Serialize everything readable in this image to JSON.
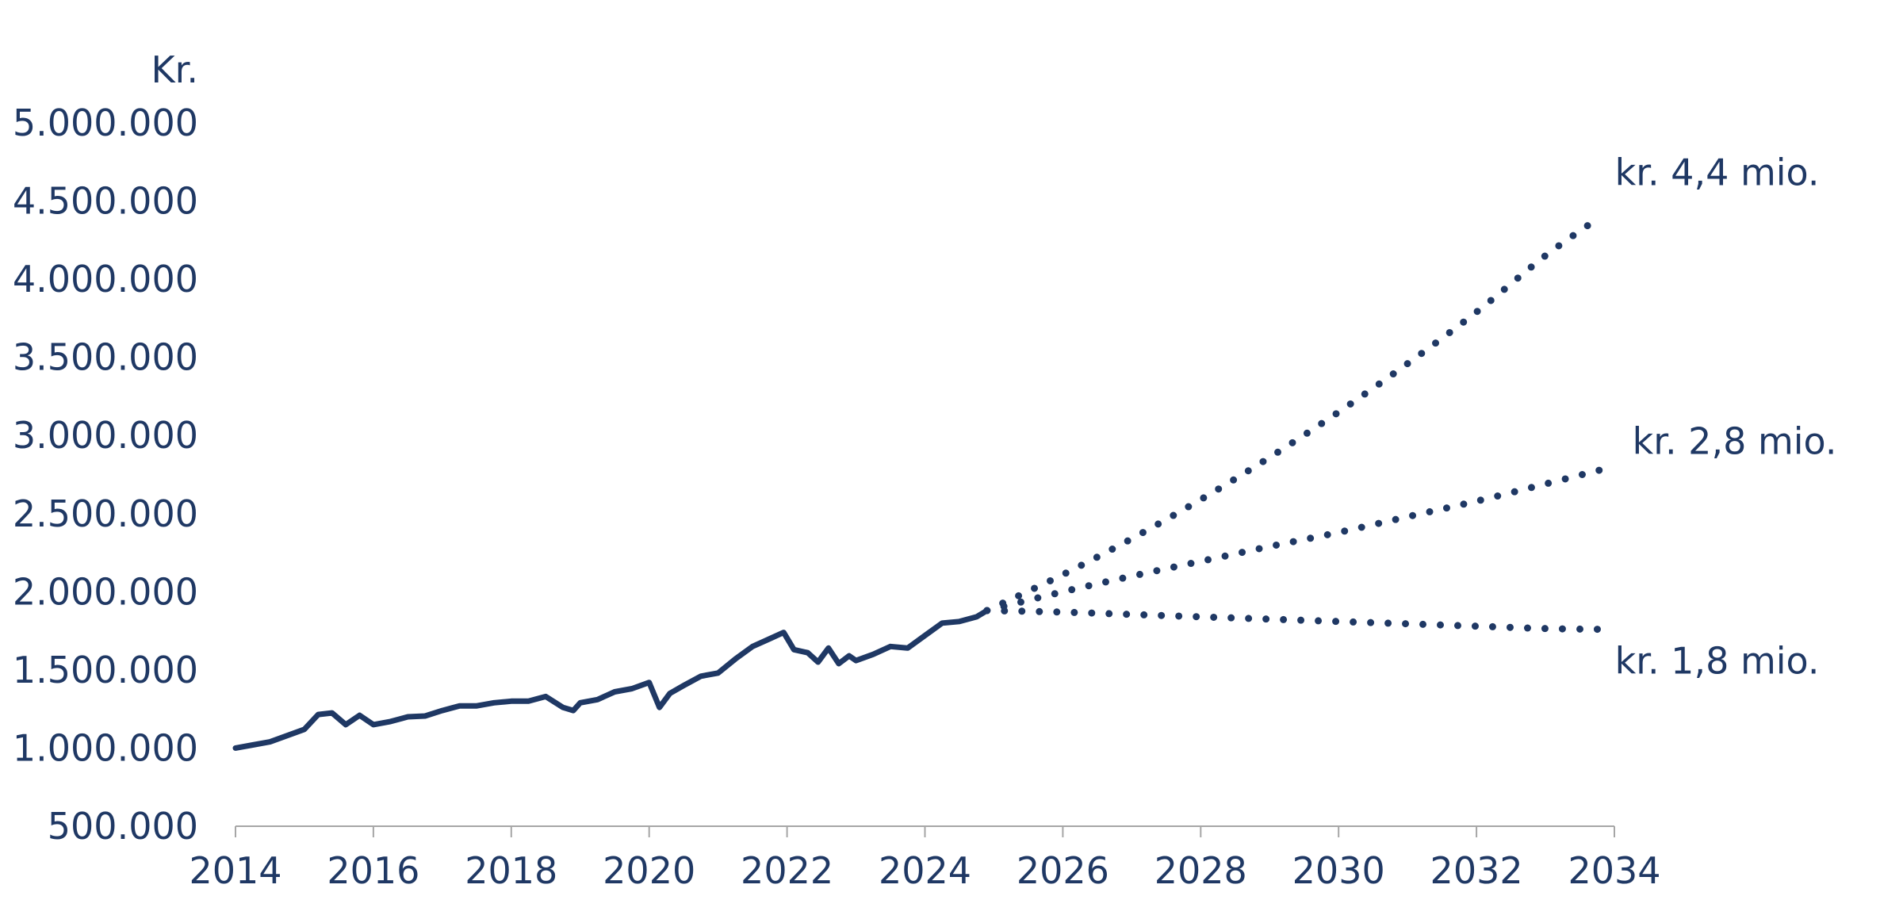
{
  "chart_data": {
    "type": "line",
    "title": "",
    "xlabel": "",
    "ylabel": "Kr.",
    "xlim": [
      2014,
      2034
    ],
    "ylim": [
      500000,
      5000000
    ],
    "x_ticks": [
      "2014",
      "2016",
      "2018",
      "2020",
      "2022",
      "2024",
      "2026",
      "2028",
      "2030",
      "2032",
      "2034"
    ],
    "y_ticks": [
      "500.000",
      "1.000.000",
      "1.500.000",
      "2.000.000",
      "2.500.000",
      "3.000.000",
      "3.500.000",
      "4.000.000",
      "4.500.000",
      "5.000.000"
    ],
    "grid": false,
    "legend": "none",
    "color": "#1f3864",
    "series": [
      {
        "style": "solid",
        "x": [
          2014.0,
          2014.25,
          2014.5,
          2014.75,
          2015.0,
          2015.2,
          2015.4,
          2015.6,
          2015.8,
          2016.0,
          2016.25,
          2016.5,
          2016.75,
          2017.0,
          2017.25,
          2017.5,
          2017.75,
          2018.0,
          2018.25,
          2018.5,
          2018.75,
          2018.9,
          2019.0,
          2019.25,
          2019.5,
          2019.75,
          2020.0,
          2020.15,
          2020.3,
          2020.5,
          2020.75,
          2021.0,
          2021.25,
          2021.5,
          2021.75,
          2021.95,
          2022.1,
          2022.3,
          2022.45,
          2022.6,
          2022.75,
          2022.9,
          2023.0,
          2023.25,
          2023.5,
          2023.75,
          2024.0,
          2024.25,
          2024.5,
          2024.75,
          2024.9
        ],
        "y": [
          1000000,
          1020000,
          1040000,
          1080000,
          1120000,
          1215000,
          1225000,
          1150000,
          1210000,
          1150000,
          1170000,
          1200000,
          1205000,
          1240000,
          1270000,
          1270000,
          1290000,
          1300000,
          1300000,
          1330000,
          1260000,
          1240000,
          1290000,
          1310000,
          1360000,
          1380000,
          1420000,
          1260000,
          1350000,
          1400000,
          1460000,
          1480000,
          1570000,
          1650000,
          1700000,
          1740000,
          1630000,
          1610000,
          1550000,
          1640000,
          1540000,
          1590000,
          1560000,
          1600000,
          1650000,
          1640000,
          1720000,
          1800000,
          1810000,
          1840000,
          1880000
        ]
      },
      {
        "name": "kr. 4,4 mio.",
        "style": "dotted",
        "x": [
          2024.9,
          2026,
          2027,
          2028,
          2029,
          2030,
          2031,
          2032,
          2033,
          2033.8
        ],
        "y": [
          1880000,
          2110000,
          2340000,
          2590000,
          2860000,
          3150000,
          3460000,
          3790000,
          4150000,
          4400000
        ]
      },
      {
        "name": "kr. 2,8 mio.",
        "style": "dotted",
        "x": [
          2024.9,
          2026,
          2027,
          2028,
          2029,
          2030,
          2031,
          2032,
          2033,
          2033.8
        ],
        "y": [
          1880000,
          2000000,
          2100000,
          2195000,
          2290000,
          2380000,
          2480000,
          2580000,
          2690000,
          2780000
        ]
      },
      {
        "name": "kr. 1,8 mio.",
        "style": "dotted",
        "x": [
          2024.9,
          2026,
          2027,
          2028,
          2029,
          2030,
          2031,
          2032,
          2033,
          2033.8
        ],
        "y": [
          1880000,
          1870000,
          1855000,
          1840000,
          1825000,
          1810000,
          1795000,
          1780000,
          1765000,
          1760000
        ]
      }
    ],
    "annotations": [
      {
        "text": "kr. 4,4 mio.",
        "series": 1
      },
      {
        "text": "kr. 2,8 mio.",
        "series": 2
      },
      {
        "text": "kr. 1,8 mio.",
        "series": 3
      }
    ]
  }
}
